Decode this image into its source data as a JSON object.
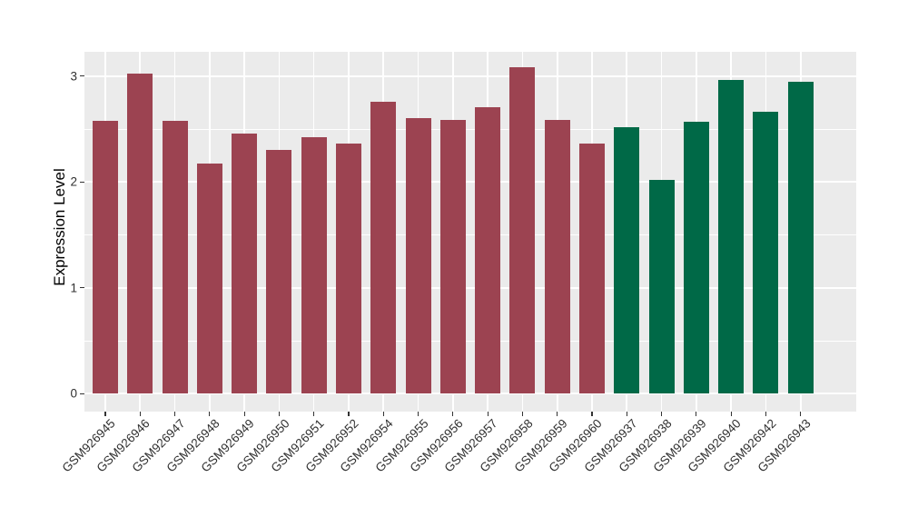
{
  "figure": {
    "background": "#FFFFFF"
  },
  "chart_data": {
    "type": "bar",
    "title": "",
    "xlabel": "",
    "ylabel": "Expression Level",
    "categories": [
      "GSM926945",
      "GSM926946",
      "GSM926947",
      "GSM926948",
      "GSM926949",
      "GSM926950",
      "GSM926951",
      "GSM926952",
      "GSM926954",
      "GSM926955",
      "GSM926956",
      "GSM926957",
      "GSM926958",
      "GSM926959",
      "GSM926960",
      "GSM926937",
      "GSM926938",
      "GSM926939",
      "GSM926940",
      "GSM926942",
      "GSM926943"
    ],
    "values": [
      2.58,
      3.02,
      2.58,
      2.17,
      2.46,
      2.3,
      2.42,
      2.36,
      2.76,
      2.6,
      2.59,
      2.71,
      3.08,
      2.59,
      2.36,
      2.52,
      2.02,
      2.57,
      2.96,
      2.66,
      2.95
    ],
    "color_groups": [
      {
        "color": "#9C4351",
        "count": 15
      },
      {
        "color": "#006947",
        "count": 6
      }
    ],
    "yticks": [
      "0",
      "1",
      "2",
      "3"
    ],
    "ytick_values": [
      0,
      1,
      2,
      3
    ],
    "y_minor_values": [
      0.5,
      1.5,
      2.5
    ],
    "ylim": [
      -0.17,
      3.23
    ],
    "grid": true,
    "legend_position": "none",
    "panel_bg": "#EBEBEB",
    "grid_color": "#FFFFFF",
    "tick_mark_color": "#333333",
    "tick_label_color": "#303030",
    "axis_title_color": "#000000"
  }
}
